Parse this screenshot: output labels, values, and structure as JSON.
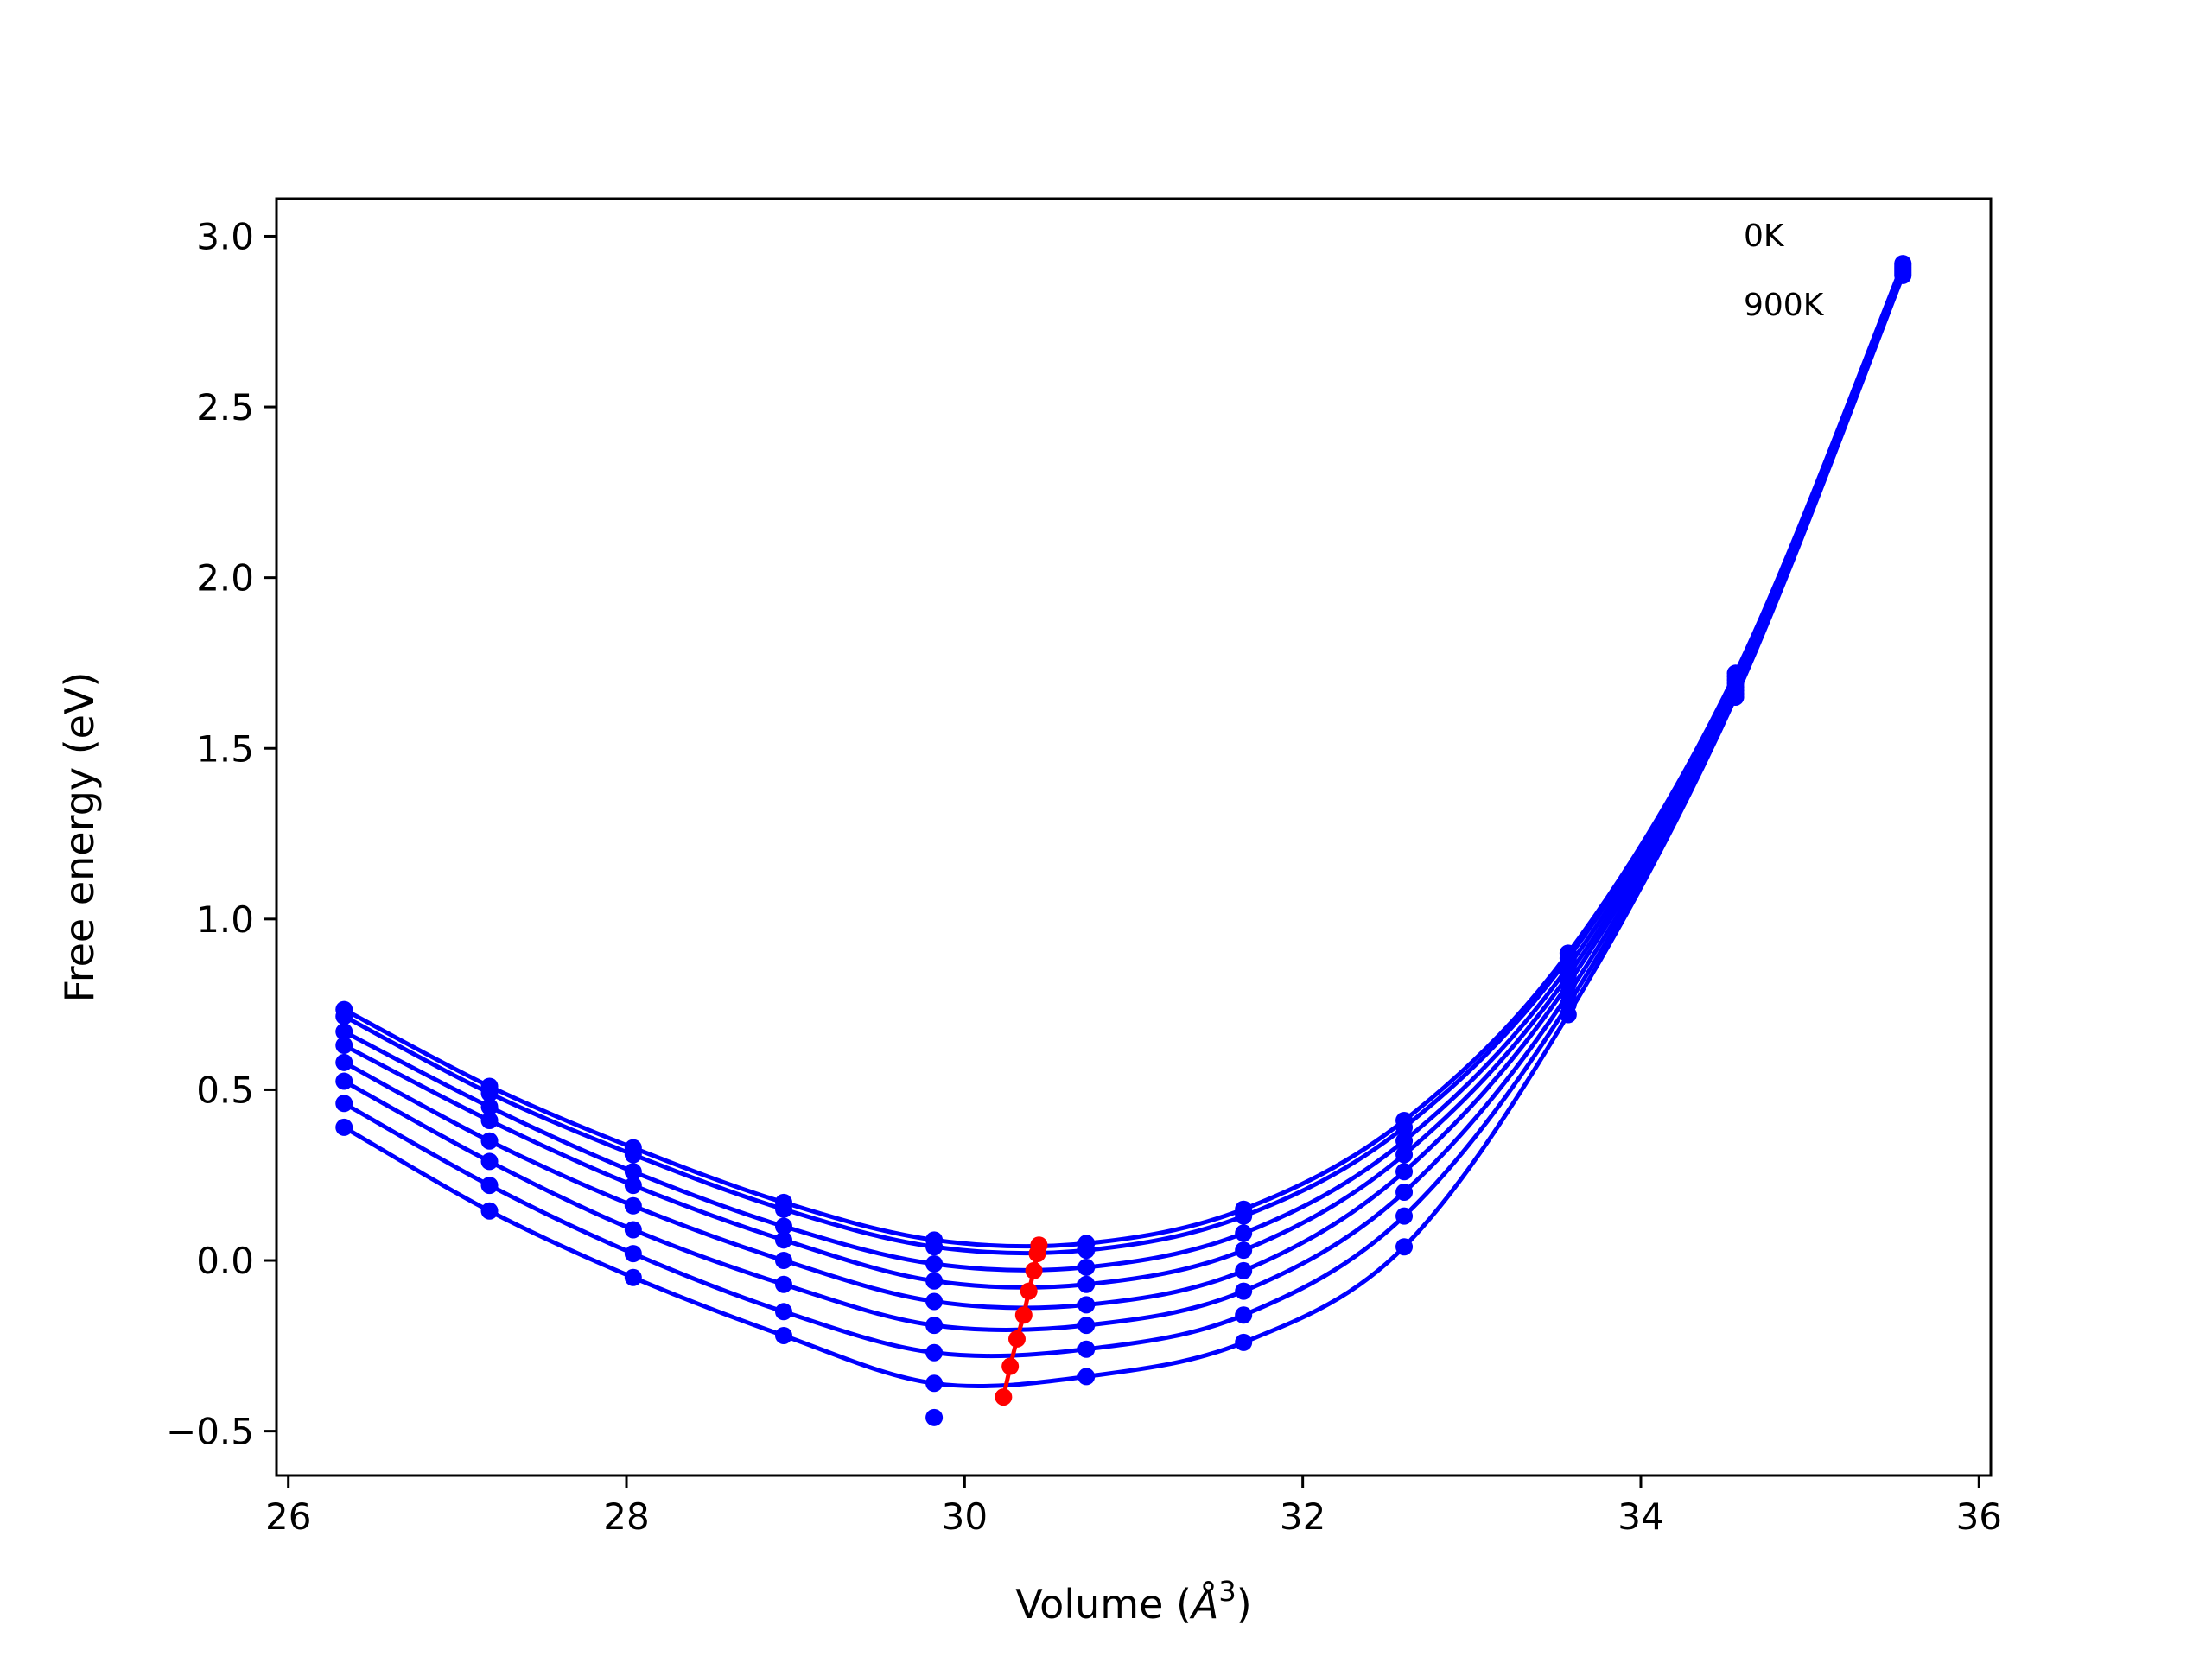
{
  "chart_data": {
    "type": "line",
    "title": "",
    "xlabel_main": "Volume (",
    "xlabel_unit": "Å",
    "xlabel_exp": "3",
    "xlabel_close": ")",
    "ylabel": "Free energy (eV)",
    "xlim": [
      25.93,
      36.07
    ],
    "ylim": [
      -0.63,
      3.11
    ],
    "x_ticks": [
      {
        "value": 26,
        "label": "26"
      },
      {
        "value": 28,
        "label": "28"
      },
      {
        "value": 30,
        "label": "30"
      },
      {
        "value": 32,
        "label": "32"
      },
      {
        "value": 34,
        "label": "34"
      },
      {
        "value": 36,
        "label": "36"
      }
    ],
    "y_ticks": [
      {
        "value": -0.5,
        "label": "−0.5"
      },
      {
        "value": 0.0,
        "label": "0.0"
      },
      {
        "value": 0.5,
        "label": "0.5"
      },
      {
        "value": 1.0,
        "label": "1.0"
      },
      {
        "value": 1.5,
        "label": "1.5"
      },
      {
        "value": 2.0,
        "label": "2.0"
      },
      {
        "value": 2.5,
        "label": "2.5"
      },
      {
        "value": 3.0,
        "label": "3.0"
      }
    ],
    "legend": [
      "0K",
      "900K"
    ],
    "legend_position": "top-right",
    "grid": false,
    "curve_color": "#0000ff",
    "minima_color": "#ff0000",
    "volumes": [
      26.33,
      27.19,
      28.04,
      28.93,
      29.82,
      30.72,
      31.65,
      32.6,
      33.57,
      34.56,
      35.55
    ],
    "series": [
      {
        "values": [
          0.735,
          0.51,
          0.33,
          0.17,
          0.06,
          0.05,
          0.15,
          0.41,
          0.9,
          1.72,
          2.92
        ]
      },
      {
        "values": [
          0.715,
          0.49,
          0.31,
          0.15,
          0.04,
          0.03,
          0.13,
          0.39,
          0.885,
          1.71,
          2.915
        ]
      },
      {
        "values": [
          0.67,
          0.45,
          0.26,
          0.1,
          -0.01,
          -0.02,
          0.08,
          0.35,
          0.86,
          1.7,
          2.91
        ]
      },
      {
        "values": [
          0.63,
          0.41,
          0.22,
          0.06,
          -0.06,
          -0.07,
          0.03,
          0.31,
          0.835,
          1.69,
          2.905
        ]
      },
      {
        "values": [
          0.58,
          0.35,
          0.16,
          0.0,
          -0.12,
          -0.13,
          -0.03,
          0.26,
          0.81,
          1.68,
          2.9
        ]
      },
      {
        "values": [
          0.525,
          0.29,
          0.09,
          -0.07,
          -0.19,
          -0.19,
          -0.09,
          0.2,
          0.78,
          1.67,
          2.895
        ]
      },
      {
        "values": [
          0.46,
          0.22,
          0.02,
          -0.15,
          -0.27,
          -0.26,
          -0.16,
          0.13,
          0.75,
          1.66,
          2.89
        ]
      },
      {
        "values": [
          0.39,
          0.145,
          -0.05,
          -0.22,
          -0.36,
          -0.34,
          -0.24,
          0.04,
          0.72,
          1.65,
          2.885
        ]
      }
    ],
    "minima_extra": [
      {
        "x": 29.82,
        "y": -0.46
      }
    ],
    "minima": [
      {
        "x": 30.44,
        "y": 0.045
      },
      {
        "x": 30.43,
        "y": 0.02
      },
      {
        "x": 30.41,
        "y": -0.03
      },
      {
        "x": 30.38,
        "y": -0.09
      },
      {
        "x": 30.35,
        "y": -0.16
      },
      {
        "x": 30.31,
        "y": -0.23
      },
      {
        "x": 30.27,
        "y": -0.31
      },
      {
        "x": 30.23,
        "y": -0.4
      }
    ]
  }
}
